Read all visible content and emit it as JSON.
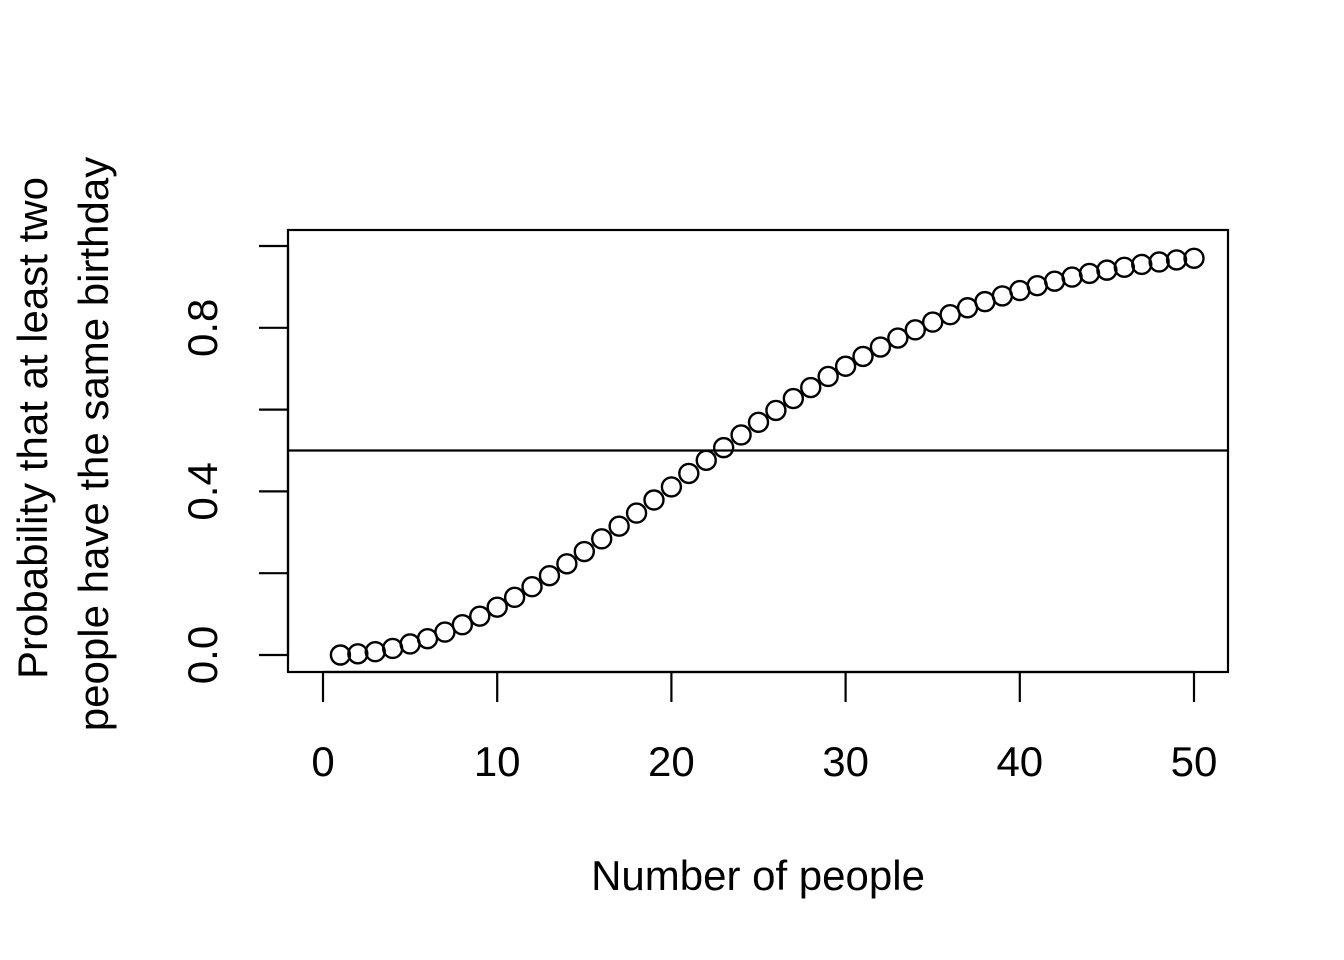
{
  "chart_data": {
    "type": "scatter",
    "title": "",
    "xlabel": "Number of people",
    "ylabel_lines": [
      "Probability that at least two",
      "people have the same birthday"
    ],
    "xlim": [
      0,
      50
    ],
    "ylim": [
      0.0,
      1.0
    ],
    "x_ticks": [
      {
        "value": 0,
        "label": "0"
      },
      {
        "value": 10,
        "label": "10"
      },
      {
        "value": 20,
        "label": "20"
      },
      {
        "value": 30,
        "label": "30"
      },
      {
        "value": 40,
        "label": "40"
      },
      {
        "value": 50,
        "label": "50"
      }
    ],
    "y_ticks": [
      {
        "value": 0.0,
        "label": "0.0"
      },
      {
        "value": 0.2,
        "label": ""
      },
      {
        "value": 0.4,
        "label": "0.4"
      },
      {
        "value": 0.6,
        "label": ""
      },
      {
        "value": 0.8,
        "label": "0.8"
      },
      {
        "value": 1.0,
        "label": ""
      }
    ],
    "reference_line": {
      "orientation": "horizontal",
      "y": 0.5
    },
    "grid": false,
    "point_style": "open-circle",
    "x": [
      1,
      2,
      3,
      4,
      5,
      6,
      7,
      8,
      9,
      10,
      11,
      12,
      13,
      14,
      15,
      16,
      17,
      18,
      19,
      20,
      21,
      22,
      23,
      24,
      25,
      26,
      27,
      28,
      29,
      30,
      31,
      32,
      33,
      34,
      35,
      36,
      37,
      38,
      39,
      40,
      41,
      42,
      43,
      44,
      45,
      46,
      47,
      48,
      49,
      50
    ],
    "y": [
      0.0,
      0.003,
      0.008,
      0.016,
      0.027,
      0.04,
      0.056,
      0.074,
      0.095,
      0.117,
      0.141,
      0.167,
      0.194,
      0.223,
      0.253,
      0.284,
      0.315,
      0.347,
      0.379,
      0.411,
      0.444,
      0.476,
      0.507,
      0.538,
      0.569,
      0.598,
      0.627,
      0.654,
      0.681,
      0.706,
      0.73,
      0.753,
      0.775,
      0.795,
      0.814,
      0.832,
      0.849,
      0.864,
      0.878,
      0.891,
      0.903,
      0.914,
      0.924,
      0.933,
      0.941,
      0.948,
      0.955,
      0.961,
      0.966,
      0.97
    ]
  }
}
